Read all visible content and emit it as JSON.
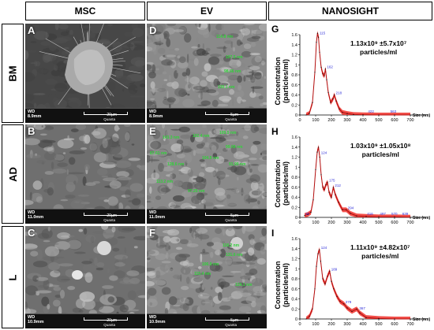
{
  "headers": {
    "msc": "MSC",
    "ev": "EV",
    "nanosight": "NANOSIGHT"
  },
  "rows": [
    "BM",
    "AD",
    "L"
  ],
  "sem_panels": [
    {
      "letter": "A",
      "wd": "WD",
      "wd_value": "8.9mm",
      "scale": "20µm",
      "quanta": "Quanta"
    },
    {
      "letter": "D",
      "wd": "WD",
      "wd_value": "8.9mm",
      "scale": "5µm",
      "quanta": "Quanta"
    },
    {
      "letter": "B",
      "wd": "WD",
      "wd_value": "11.0mm",
      "scale": "20µm",
      "quanta": "Quanta"
    },
    {
      "letter": "E",
      "wd": "WD",
      "wd_value": "11.0mm",
      "scale": "5µm",
      "quanta": "Quanta"
    },
    {
      "letter": "C",
      "wd": "WD",
      "wd_value": "10.9mm",
      "scale": "20µm",
      "quanta": "Quanta"
    },
    {
      "letter": "F",
      "wd": "WD",
      "wd_value": "10.9mm",
      "scale": "5µm",
      "quanta": "Quanta"
    }
  ],
  "measurement_labels": {
    "D": [
      "114.8 nm",
      "107.5 nm",
      "98.66 nm",
      "130.1 nm"
    ],
    "E": [
      "143.3 nm",
      "102.4 nm",
      "109.5 nm",
      "99.08 nm",
      "87.61 nm",
      "128.6 nm",
      "104.5 nm",
      "91.99 nm",
      "113.2 nm",
      "97.25 nm"
    ],
    "F": [
      "118.2 nm",
      "131.6 nm",
      "106.9 nm",
      "115.4 nm",
      "124.1 nm"
    ]
  },
  "chart_data": [
    {
      "type": "line",
      "panel": "G",
      "ylabel": "Concentration\n(particles/ml)",
      "xlabel": "Size (nm)",
      "annotation": "1.13x10⁹ ±5.7x10⁷\nparticles/ml",
      "xlim": [
        0,
        800
      ],
      "ylim": [
        0,
        1.6
      ],
      "xticks": [
        0,
        100,
        200,
        300,
        400,
        500,
        600,
        700
      ],
      "yticks": [
        0,
        0.2,
        0.4,
        0.6,
        0.8,
        1,
        1.2,
        1.4,
        1.6
      ],
      "peak_labels": [
        {
          "x": 115,
          "label": "115"
        },
        {
          "x": 162,
          "label": "162"
        },
        {
          "x": 218,
          "label": "218"
        },
        {
          "x": 422,
          "label": "422"
        },
        {
          "x": 563,
          "label": "563"
        }
      ],
      "x": [
        40,
        60,
        80,
        95,
        105,
        112,
        118,
        125,
        135,
        145,
        155,
        162,
        170,
        180,
        195,
        210,
        218,
        230,
        250,
        270,
        300,
        340,
        400,
        500,
        600,
        700
      ],
      "y": [
        0,
        0.03,
        0.25,
        0.85,
        1.45,
        1.63,
        1.55,
        1.25,
        0.95,
        0.82,
        0.78,
        0.92,
        0.7,
        0.45,
        0.25,
        0.32,
        0.4,
        0.28,
        0.12,
        0.05,
        0.03,
        0.01,
        0.005,
        0,
        0,
        0
      ]
    },
    {
      "type": "line",
      "panel": "H",
      "ylabel": "Concentration\n(particles/ml)",
      "xlabel": "Size (nm)",
      "annotation": "1.03x10⁹ ±1.05x10⁸\nparticles/ml",
      "xlim": [
        0,
        800
      ],
      "ylim": [
        0,
        1.6
      ],
      "xticks": [
        0,
        100,
        200,
        300,
        400,
        500,
        600,
        700
      ],
      "yticks": [
        0,
        0.2,
        0.4,
        0.6,
        0.8,
        1,
        1.2,
        1.4,
        1.6
      ],
      "peak_labels": [
        {
          "x": 25,
          "label": "25"
        },
        {
          "x": 124,
          "label": "124"
        },
        {
          "x": 175,
          "label": "175"
        },
        {
          "x": 212,
          "label": "212"
        },
        {
          "x": 294,
          "label": "294"
        },
        {
          "x": 416,
          "label": "416"
        },
        {
          "x": 497,
          "label": "497"
        },
        {
          "x": 570,
          "label": "570"
        },
        {
          "x": 639,
          "label": "639"
        }
      ],
      "x": [
        30,
        50,
        70,
        85,
        100,
        110,
        118,
        126,
        135,
        145,
        155,
        165,
        175,
        185,
        200,
        212,
        225,
        245,
        270,
        294,
        320,
        360,
        420,
        500,
        600,
        700
      ],
      "y": [
        0.04,
        0.06,
        0.1,
        0.35,
        0.95,
        1.3,
        1.4,
        1.2,
        0.85,
        0.6,
        0.55,
        0.65,
        0.7,
        0.5,
        0.4,
        0.6,
        0.45,
        0.3,
        0.15,
        0.15,
        0.08,
        0.03,
        0.02,
        0.01,
        0.01,
        0.005
      ]
    },
    {
      "type": "line",
      "panel": "I",
      "ylabel": "Concentration\n(particles/ml)",
      "xlabel": "Size (nm)",
      "annotation": "1.11x10⁹ ±4.82x10⁷\nparticles/ml",
      "xlim": [
        0,
        800
      ],
      "ylim": [
        0,
        1.6
      ],
      "xticks": [
        0,
        100,
        200,
        300,
        400,
        500,
        600,
        700
      ],
      "yticks": [
        0,
        0.2,
        0.4,
        0.6,
        0.8,
        1,
        1.2,
        1.4,
        1.6
      ],
      "peak_labels": [
        {
          "x": 124,
          "label": "124"
        },
        {
          "x": 189,
          "label": "189"
        },
        {
          "x": 279,
          "label": "279"
        },
        {
          "x": 367,
          "label": "367"
        }
      ],
      "x": [
        40,
        60,
        80,
        95,
        105,
        115,
        124,
        132,
        145,
        160,
        175,
        189,
        200,
        215,
        235,
        255,
        279,
        300,
        330,
        360,
        380,
        420,
        500,
        600,
        700
      ],
      "y": [
        0,
        0.05,
        0.2,
        0.6,
        1.05,
        1.3,
        1.38,
        1.15,
        0.8,
        0.7,
        0.85,
        0.95,
        0.75,
        0.6,
        0.45,
        0.35,
        0.3,
        0.22,
        0.15,
        0.2,
        0.12,
        0.03,
        0.01,
        0,
        0
      ]
    }
  ],
  "colors": {
    "curve": "#e31b1b",
    "curve_fill": "#f0302a",
    "error": "#b30f0f",
    "peak_label": "#2f2fd8",
    "measure": "#31d33a"
  }
}
